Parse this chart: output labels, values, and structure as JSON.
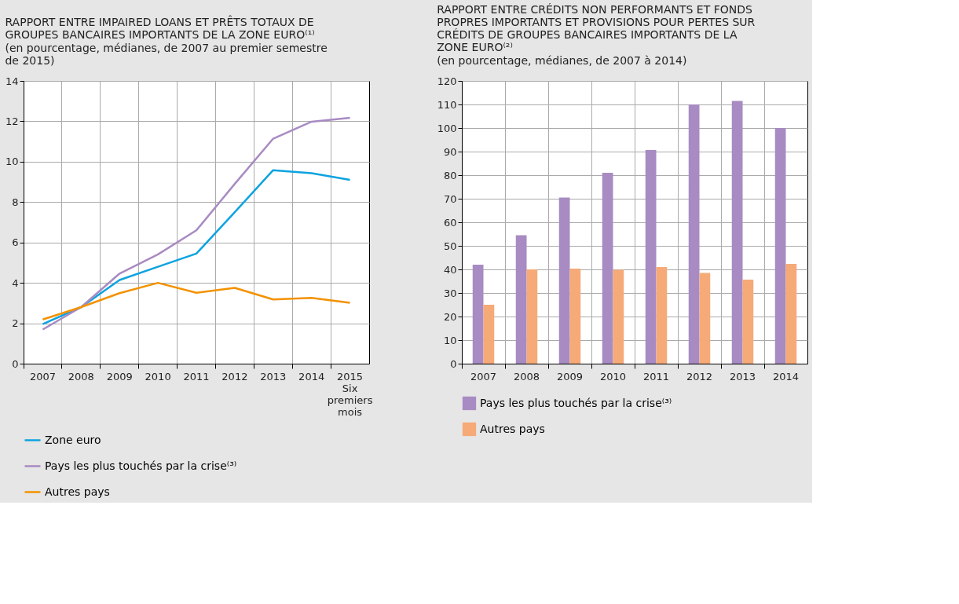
{
  "chart_data": [
    {
      "type": "line",
      "title": "RAPPORT ENTRE IMPAIRED LOANS ET PRÊTS TOTAUX DE\nGROUPES BANCAIRES IMPORTANTS DE LA ZONE EURO⁽¹⁾",
      "subtitle": "(en pourcentage, médianes, de 2007 au premier semestre\nde 2015)",
      "categories": [
        "2007",
        "2008",
        "2009",
        "2010",
        "2011",
        "2012",
        "2013",
        "2014",
        "2015\nSix\npremiers\nmois"
      ],
      "series": [
        {
          "name": "Zone euro",
          "color": "#0da3e0",
          "values": [
            1.96,
            2.8,
            4.14,
            4.8,
            5.45,
            7.5,
            9.58,
            9.43,
            9.1
          ]
        },
        {
          "name": "Pays les plus touchés par la crise⁽³⁾",
          "color": "#a88bc2",
          "values": [
            1.69,
            2.8,
            4.46,
            5.41,
            6.6,
            8.9,
            11.14,
            11.98,
            12.17
          ]
        },
        {
          "name": "Autres pays",
          "color": "#f39200",
          "values": [
            2.19,
            2.8,
            3.49,
            4.0,
            3.51,
            3.75,
            3.18,
            3.26,
            3.01
          ]
        }
      ],
      "ylim": [
        0,
        14
      ],
      "yticks": [
        0,
        2,
        4,
        6,
        8,
        10,
        12,
        14
      ],
      "grid": true,
      "legend": "bottom",
      "line_style": "solid",
      "marker": "none"
    },
    {
      "type": "bar",
      "title": "RAPPORT ENTRE CRÉDITS NON PERFORMANTS ET FONDS\nPROPRES IMPORTANTS ET PROVISIONS POUR PERTES SUR\nCRÉDITS DE GROUPES BANCAIRES IMPORTANTS DE LA\nZONE EURO⁽²⁾",
      "subtitle": "(en pourcentage, médianes, de 2007 à 2014)",
      "categories": [
        "2007",
        "2008",
        "2009",
        "2010",
        "2011",
        "2012",
        "2013",
        "2014"
      ],
      "series": [
        {
          "name": "Pays les plus touchés par la crise⁽³⁾",
          "color": "#a88bc2",
          "values": [
            42,
            54.5,
            70.5,
            81,
            90.7,
            110,
            111.5,
            100
          ]
        },
        {
          "name": "Autres pays",
          "color": "#f5aa78",
          "values": [
            25,
            40,
            40.3,
            39.8,
            41,
            38.5,
            35.7,
            42.3
          ]
        }
      ],
      "ylim": [
        0,
        120
      ],
      "yticks": [
        0,
        10,
        20,
        30,
        40,
        50,
        60,
        70,
        80,
        90,
        100,
        110,
        120
      ],
      "grid": true,
      "legend": "bottom"
    }
  ]
}
